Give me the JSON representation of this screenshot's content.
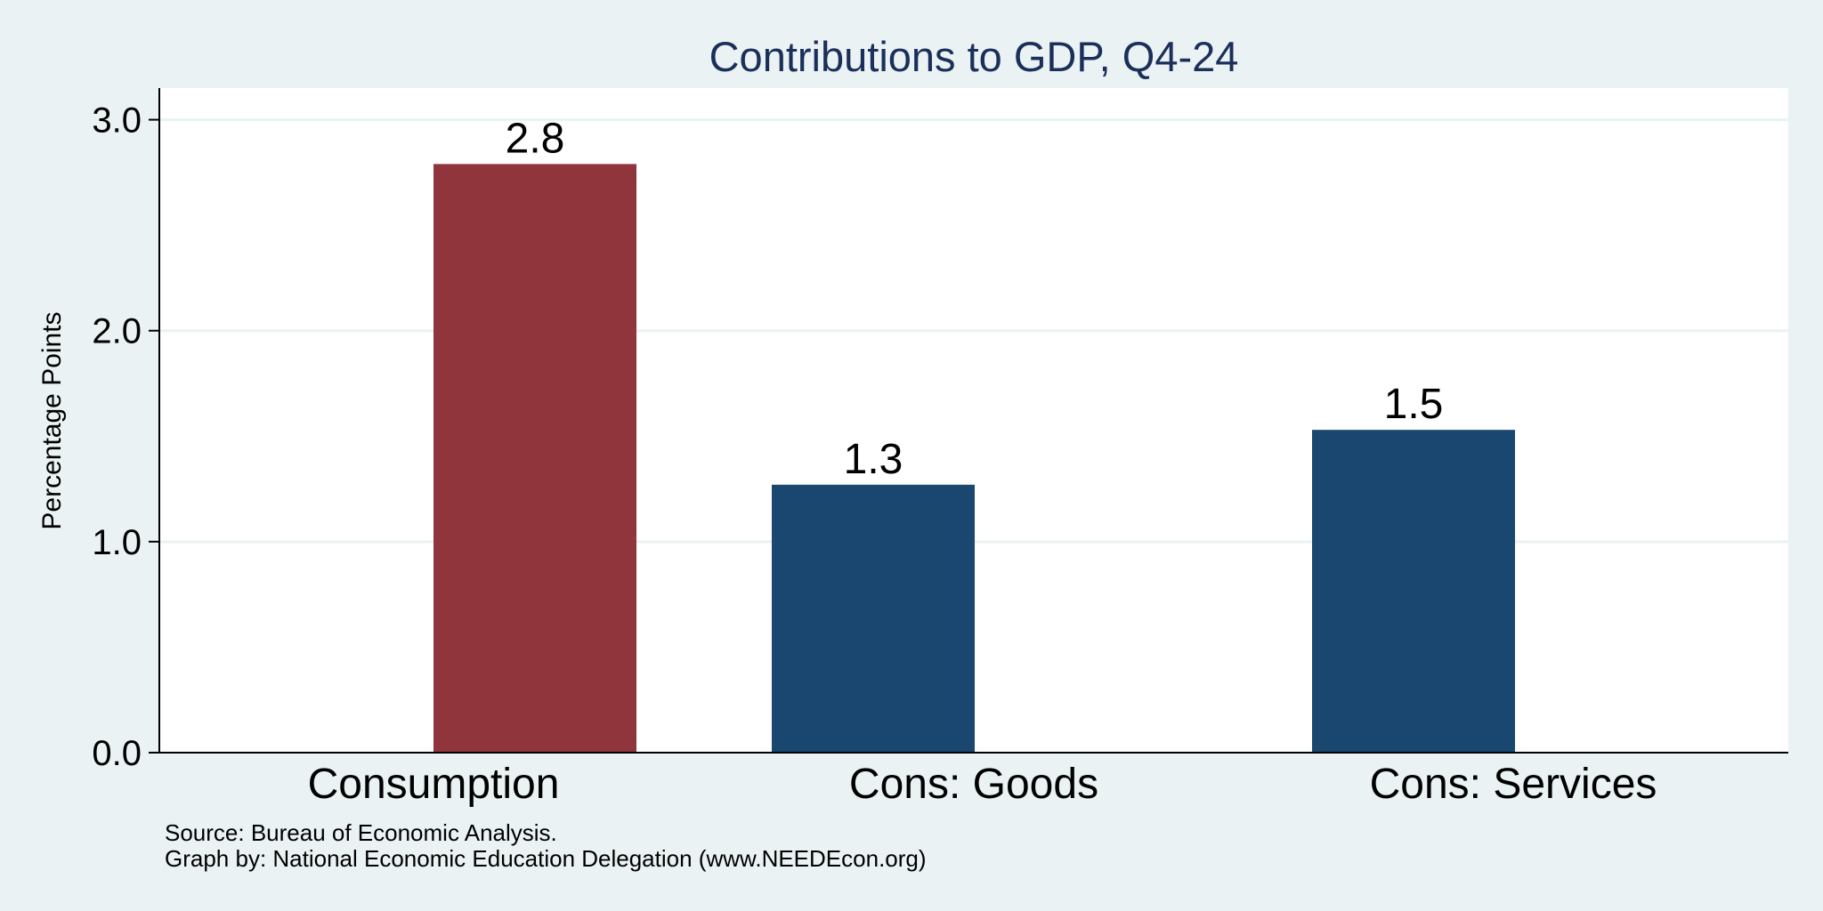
{
  "chart_data": {
    "type": "bar",
    "title": "Contributions to GDP, Q4-24",
    "xlabel": "",
    "ylabel": "Percentage Points",
    "categories": [
      "Consumption",
      "Cons: Goods",
      "Cons: Services"
    ],
    "values": [
      2.79,
      1.27,
      1.53
    ],
    "value_labels": [
      "2.8",
      "1.3",
      "1.5"
    ],
    "bar_colors": [
      "#90353b",
      "#1a476f",
      "#1a476f"
    ],
    "ylim": [
      0,
      3.15
    ],
    "yticks": [
      0.0,
      1.0,
      2.0,
      3.0
    ],
    "ytick_labels": [
      "0.0",
      "1.0",
      "2.0",
      "3.0"
    ],
    "grid": true,
    "colors": {
      "background": "#eaf2f3",
      "plot_area": "#ffffff",
      "gridline": "#eaf2f3",
      "title": "#1a2f5a"
    }
  },
  "notes": {
    "source": "Source: Bureau of Economic Analysis.",
    "credit": "Graph by: National Economic Education Delegation (www.NEEDEcon.org)"
  }
}
